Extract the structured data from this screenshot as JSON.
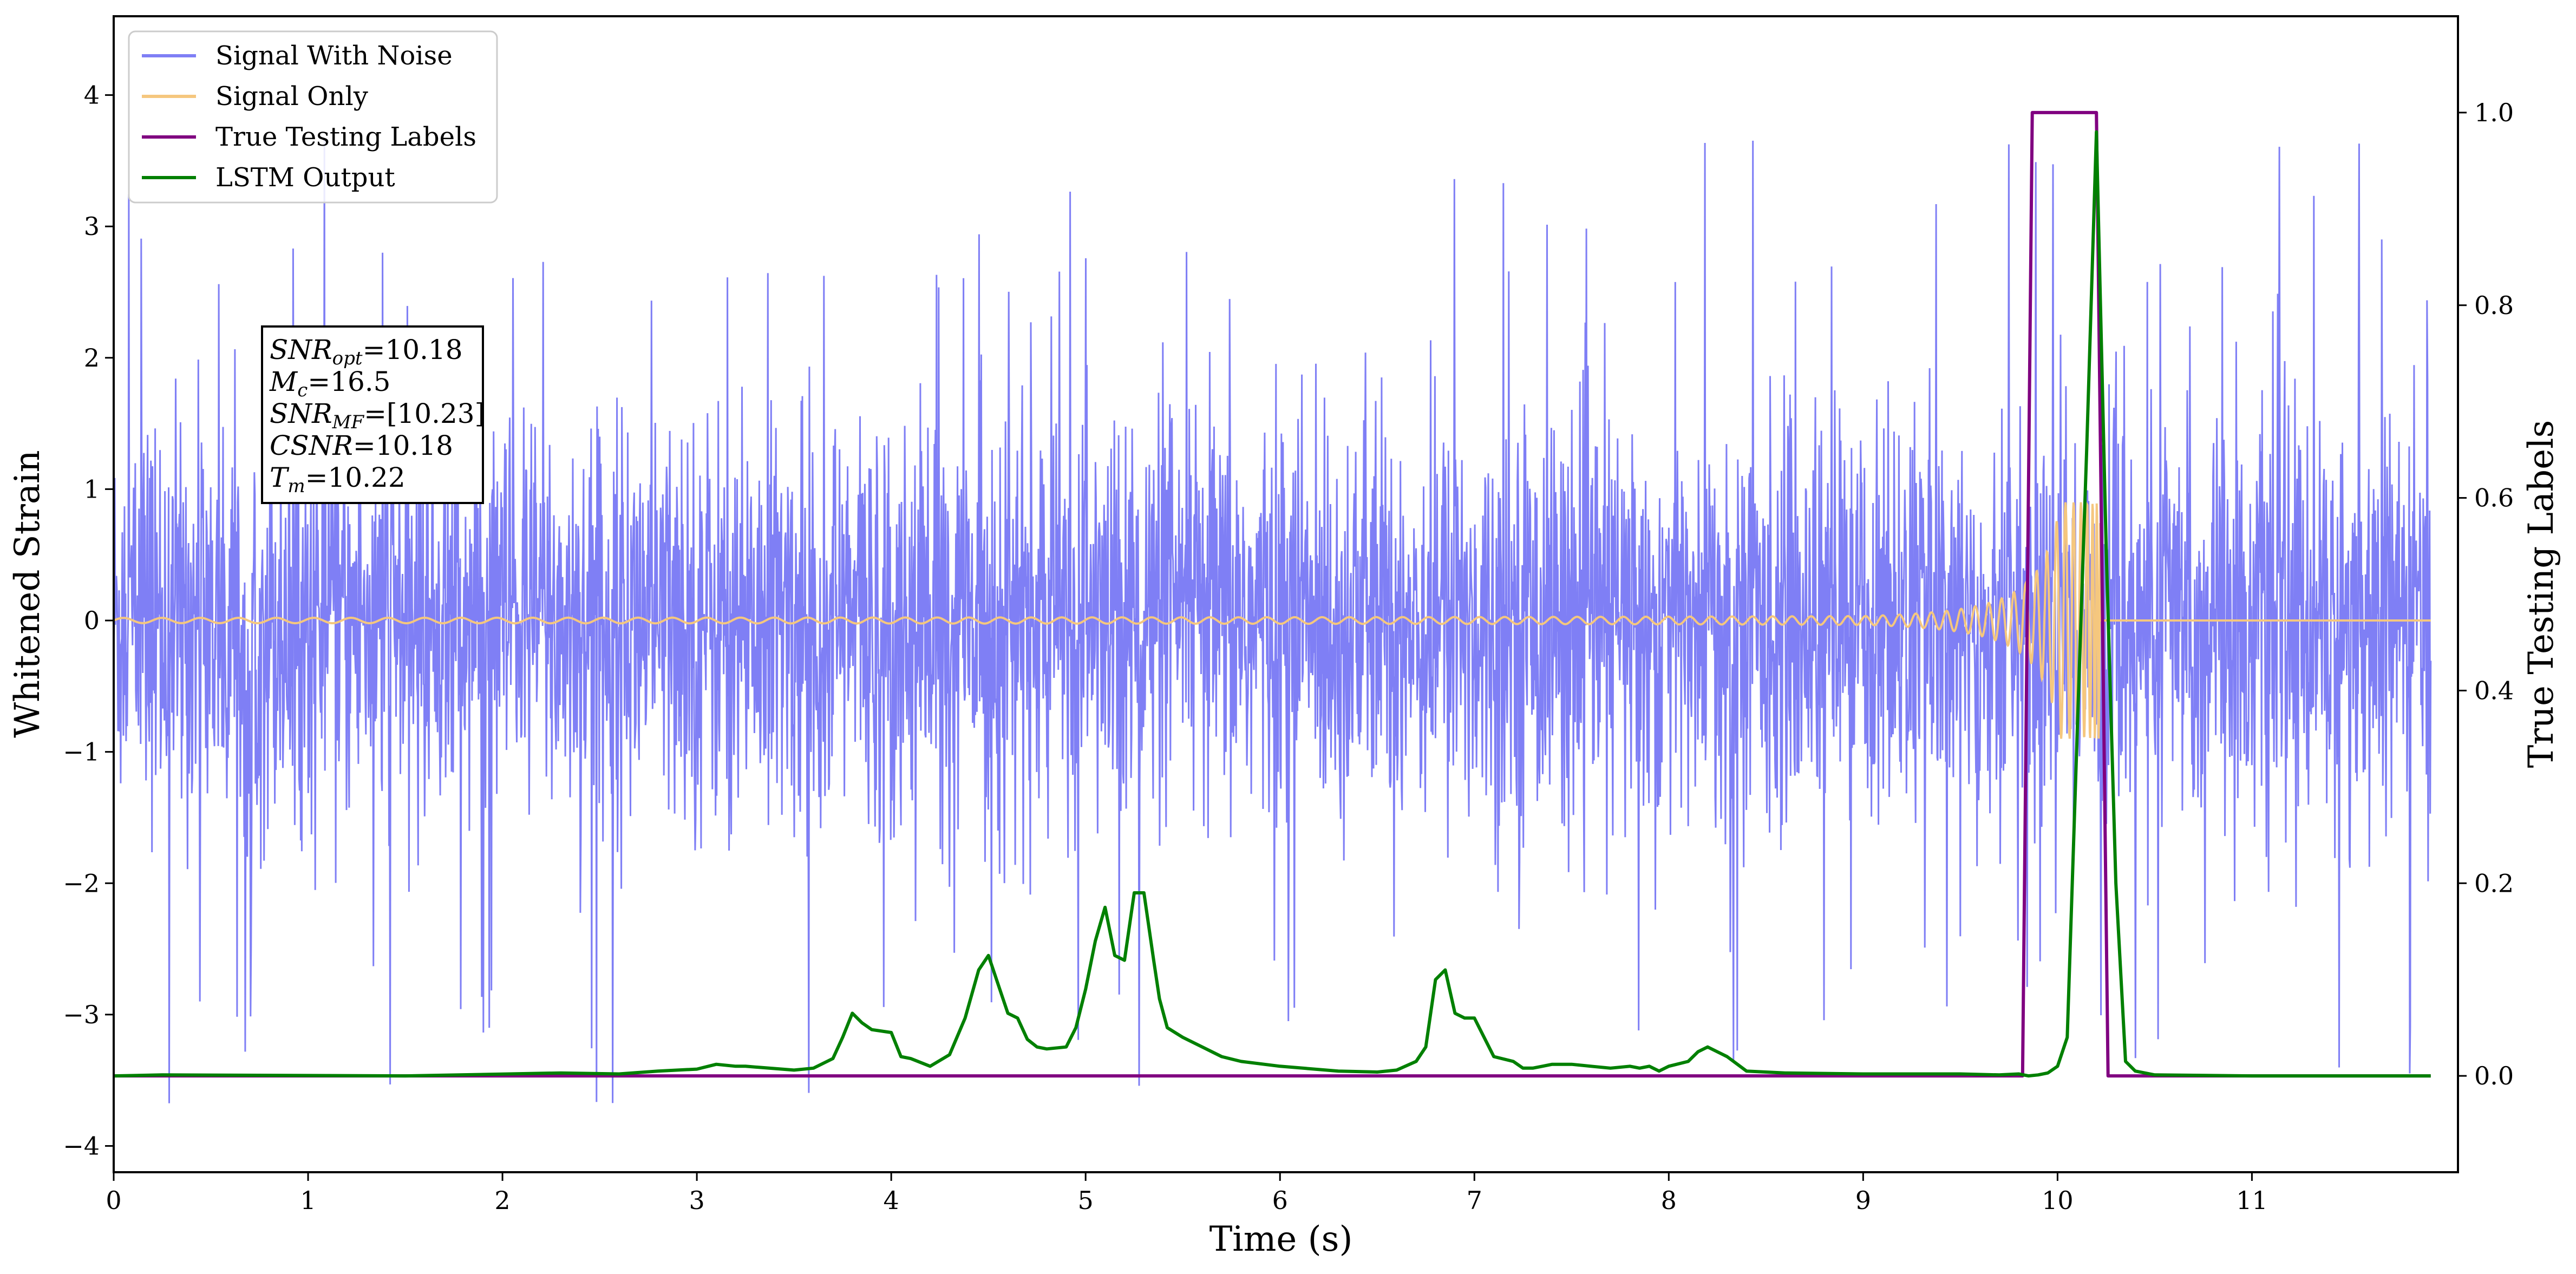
{
  "chart_data": {
    "type": "line",
    "xlabel": "Time (s)",
    "ylabel_left": "Whitened Strain",
    "ylabel_right": "True Testing Labels",
    "xlim": [
      0,
      12
    ],
    "ylim_left": [
      -4.2,
      4.6
    ],
    "ylim_right": [
      -0.1,
      1.1
    ],
    "grid": false,
    "legend_position": "top-left",
    "x_ticks": [
      0,
      1,
      2,
      3,
      4,
      5,
      6,
      7,
      8,
      9,
      10,
      11
    ],
    "x_tick_labels": [
      "0",
      "1",
      "2",
      "3",
      "4",
      "5",
      "6",
      "7",
      "8",
      "9",
      "10",
      "11"
    ],
    "y_left_ticks": [
      -4,
      -3,
      -2,
      -1,
      0,
      1,
      2,
      3,
      4
    ],
    "y_left_tick_labels": [
      "−4",
      "−3",
      "−2",
      "−1",
      "0",
      "1",
      "2",
      "3",
      "4"
    ],
    "y_right_ticks": [
      0.0,
      0.2,
      0.4,
      0.6,
      0.8,
      1.0
    ],
    "y_right_tick_labels": [
      "0.0",
      "0.2",
      "0.4",
      "0.6",
      "0.8",
      "1.0"
    ],
    "series": [
      {
        "name": "Signal With Noise",
        "axis": "left",
        "color": "#7f7ff5",
        "description_values": "dense noise, roughly Gaussian with std ~0.8; spikes up to ~3.8 and down to ~-3.8 across 0–12 s"
      },
      {
        "name": "Signal Only",
        "axis": "left",
        "color": "#f5c77e",
        "chirp": {
          "start_time": 0,
          "merger_time": 10.22,
          "start_amplitude": 0.02,
          "peak_amplitude": 0.9,
          "start_frequency_hz": 5,
          "end_value_after_merger": 0
        }
      },
      {
        "name": "True Testing Labels",
        "axis": "right",
        "color": "#800080",
        "x": [
          0,
          9.82,
          9.87,
          10.2,
          10.26,
          11.92
        ],
        "y": [
          0,
          0,
          1,
          1,
          0,
          0
        ]
      },
      {
        "name": "LSTM Output",
        "axis": "right",
        "color": "#008000",
        "x": [
          0,
          0.25,
          1.5,
          2.3,
          2.6,
          2.8,
          3.0,
          3.1,
          3.2,
          3.25,
          3.5,
          3.6,
          3.7,
          3.75,
          3.8,
          3.85,
          3.9,
          4.0,
          4.05,
          4.1,
          4.2,
          4.3,
          4.38,
          4.45,
          4.5,
          4.55,
          4.6,
          4.65,
          4.7,
          4.75,
          4.8,
          4.9,
          4.95,
          5.0,
          5.05,
          5.1,
          5.15,
          5.2,
          5.25,
          5.3,
          5.35,
          5.38,
          5.42,
          5.5,
          5.6,
          5.7,
          5.8,
          6.0,
          6.3,
          6.5,
          6.6,
          6.7,
          6.75,
          6.8,
          6.85,
          6.9,
          6.95,
          7.0,
          7.05,
          7.1,
          7.2,
          7.25,
          7.3,
          7.35,
          7.4,
          7.5,
          7.6,
          7.7,
          7.8,
          7.85,
          7.9,
          7.95,
          8.0,
          8.1,
          8.15,
          8.2,
          8.3,
          8.4,
          8.6,
          9.0,
          9.2,
          9.5,
          9.7,
          9.8,
          9.85,
          9.9,
          9.95,
          10.0,
          10.05,
          10.1,
          10.15,
          10.2,
          10.25,
          10.3,
          10.35,
          10.4,
          10.5,
          11.0,
          11.92
        ],
        "y": [
          0.0,
          0.001,
          0.0,
          0.003,
          0.002,
          0.005,
          0.007,
          0.012,
          0.01,
          0.01,
          0.006,
          0.008,
          0.018,
          0.04,
          0.065,
          0.055,
          0.048,
          0.045,
          0.02,
          0.018,
          0.01,
          0.022,
          0.06,
          0.11,
          0.125,
          0.095,
          0.065,
          0.06,
          0.038,
          0.03,
          0.028,
          0.03,
          0.05,
          0.09,
          0.14,
          0.175,
          0.125,
          0.12,
          0.19,
          0.19,
          0.12,
          0.08,
          0.05,
          0.04,
          0.03,
          0.02,
          0.015,
          0.01,
          0.005,
          0.004,
          0.006,
          0.015,
          0.03,
          0.1,
          0.11,
          0.065,
          0.06,
          0.06,
          0.04,
          0.02,
          0.015,
          0.008,
          0.008,
          0.01,
          0.012,
          0.012,
          0.01,
          0.008,
          0.01,
          0.008,
          0.01,
          0.005,
          0.01,
          0.015,
          0.025,
          0.03,
          0.02,
          0.005,
          0.003,
          0.002,
          0.002,
          0.002,
          0.001,
          0.002,
          0.0,
          0.001,
          0.003,
          0.01,
          0.04,
          0.35,
          0.65,
          0.98,
          0.55,
          0.2,
          0.015,
          0.005,
          0.001,
          0.0,
          0.0
        ]
      }
    ],
    "annotation": {
      "lines": [
        {
          "base": "SNR",
          "sub": "opt",
          "value": "=10.18"
        },
        {
          "base": "M",
          "sub": "c",
          "value": "=16.5"
        },
        {
          "base": "SNR",
          "sub": "MF",
          "value": "=[10.23]"
        },
        {
          "base": "CSNR",
          "sub": "",
          "value": "=10.18"
        },
        {
          "base": "T",
          "sub": "m",
          "value": "=10.22"
        }
      ]
    }
  }
}
